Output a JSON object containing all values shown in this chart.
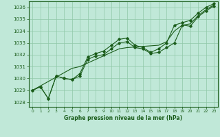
{
  "title": "Graphe pression niveau de la mer (hPa)",
  "bg_color": "#c0e8d8",
  "line_color": "#1a5c1a",
  "grid_color": "#90c8a8",
  "xlim": [
    -0.5,
    23.5
  ],
  "ylim": [
    1027.6,
    1036.5
  ],
  "yticks": [
    1028,
    1029,
    1030,
    1031,
    1032,
    1033,
    1034,
    1035,
    1036
  ],
  "xticks": [
    0,
    1,
    2,
    3,
    4,
    5,
    6,
    7,
    8,
    9,
    10,
    11,
    12,
    13,
    14,
    15,
    16,
    17,
    18,
    19,
    20,
    21,
    22,
    23
  ],
  "series_main": [
    1029.0,
    1029.3,
    1028.3,
    1030.2,
    1030.0,
    1029.9,
    1030.2,
    1031.6,
    1031.9,
    1032.0,
    1032.5,
    1033.0,
    1033.1,
    1032.6,
    1032.5,
    1032.1,
    1032.2,
    1032.6,
    1033.0,
    1034.5,
    1034.4,
    1035.2,
    1035.7,
    1036.1
  ],
  "series_upper": [
    1029.0,
    1029.3,
    1028.3,
    1030.2,
    1030.0,
    1029.9,
    1030.4,
    1031.8,
    1032.1,
    1032.3,
    1032.8,
    1033.3,
    1033.4,
    1032.8,
    1032.6,
    1032.2,
    1032.5,
    1033.0,
    1034.5,
    1034.7,
    1034.9,
    1035.5,
    1036.0,
    1036.3
  ],
  "series_trend": [
    1029.0,
    1029.37,
    1029.74,
    1030.11,
    1030.48,
    1030.85,
    1031.0,
    1031.3,
    1031.6,
    1031.9,
    1032.2,
    1032.5,
    1032.6,
    1032.65,
    1032.7,
    1032.75,
    1032.8,
    1033.1,
    1034.0,
    1034.5,
    1034.6,
    1035.3,
    1035.8,
    1036.2
  ]
}
